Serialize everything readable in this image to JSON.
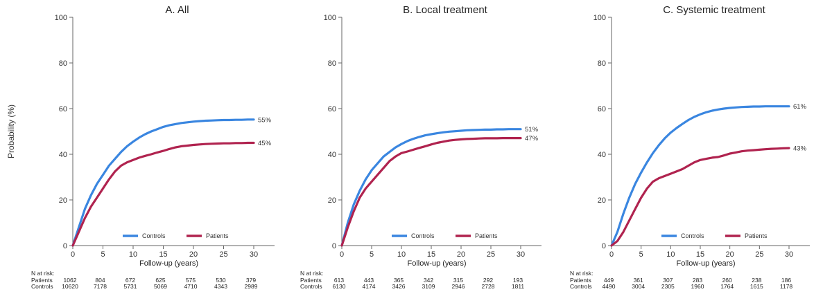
{
  "y_axis_label": "Probability (%)",
  "x_axis_label": "Follow-up (years)",
  "risk_header": "N at risk:",
  "colors": {
    "Controls": "#3a86e0",
    "Patients": "#b0234f"
  },
  "chart_data": [
    {
      "type": "line",
      "title": "A. All",
      "xlabel": "Follow-up (years)",
      "ylabel": "Probability (%)",
      "xlim": [
        0,
        30
      ],
      "ylim": [
        0,
        100
      ],
      "xticks": [
        0,
        5,
        10,
        15,
        20,
        25,
        30
      ],
      "yticks": [
        0,
        20,
        40,
        60,
        80,
        100
      ],
      "legend": [
        "Controls",
        "Patients"
      ],
      "series": [
        {
          "name": "Controls",
          "end_label": "55%",
          "x": [
            0,
            1,
            2,
            3,
            4,
            5,
            6,
            7,
            8,
            9,
            10,
            11,
            12,
            13,
            14,
            15,
            16,
            17,
            18,
            19,
            20,
            21,
            22,
            23,
            24,
            25,
            26,
            27,
            28,
            29,
            30
          ],
          "y": [
            0,
            8,
            16,
            22,
            27,
            31,
            35,
            38,
            41,
            43.5,
            45.5,
            47.3,
            48.8,
            50,
            51,
            52,
            52.7,
            53.2,
            53.7,
            54,
            54.3,
            54.5,
            54.7,
            54.8,
            54.9,
            55,
            55,
            55.1,
            55.1,
            55.2,
            55.2
          ]
        },
        {
          "name": "Patients",
          "end_label": "45%",
          "x": [
            0,
            1,
            2,
            3,
            4,
            5,
            6,
            7,
            8,
            9,
            10,
            11,
            12,
            13,
            14,
            15,
            16,
            17,
            18,
            19,
            20,
            21,
            22,
            23,
            24,
            25,
            26,
            27,
            28,
            29,
            30
          ],
          "y": [
            0,
            6,
            12,
            17,
            21,
            25,
            29,
            32.5,
            35,
            36.5,
            37.5,
            38.5,
            39.3,
            40,
            40.8,
            41.5,
            42.3,
            43,
            43.5,
            43.8,
            44.1,
            44.3,
            44.5,
            44.6,
            44.7,
            44.8,
            44.8,
            44.9,
            44.9,
            45,
            45
          ]
        }
      ],
      "at_risk": {
        "Patients": [
          1062,
          804,
          672,
          625,
          575,
          530,
          379
        ],
        "Controls": [
          10620,
          7178,
          5731,
          5069,
          4710,
          4343,
          2989
        ]
      }
    },
    {
      "type": "line",
      "title": "B. Local treatment",
      "xlabel": "Follow-up (years)",
      "ylabel": "Probability (%)",
      "xlim": [
        0,
        30
      ],
      "ylim": [
        0,
        100
      ],
      "xticks": [
        0,
        5,
        10,
        15,
        20,
        25,
        30
      ],
      "yticks": [
        0,
        20,
        40,
        60,
        80,
        100
      ],
      "legend": [
        "Controls",
        "Patients"
      ],
      "series": [
        {
          "name": "Controls",
          "end_label": "51%",
          "x": [
            0,
            1,
            2,
            3,
            4,
            5,
            6,
            7,
            8,
            9,
            10,
            11,
            12,
            13,
            14,
            15,
            16,
            17,
            18,
            19,
            20,
            21,
            22,
            23,
            24,
            25,
            26,
            27,
            28,
            29,
            30
          ],
          "y": [
            0,
            10,
            18,
            24,
            29,
            33,
            36,
            39,
            41,
            43,
            44.5,
            45.8,
            46.8,
            47.6,
            48.3,
            48.8,
            49.2,
            49.6,
            49.9,
            50.1,
            50.3,
            50.5,
            50.6,
            50.7,
            50.8,
            50.8,
            50.9,
            50.9,
            51,
            51,
            51
          ]
        },
        {
          "name": "Patients",
          "end_label": "47%",
          "x": [
            0,
            1,
            2,
            3,
            4,
            5,
            6,
            7,
            8,
            9,
            10,
            11,
            12,
            13,
            14,
            15,
            16,
            17,
            18,
            19,
            20,
            21,
            22,
            23,
            24,
            25,
            26,
            27,
            28,
            29,
            30
          ],
          "y": [
            0,
            8,
            15,
            21,
            25,
            28,
            31,
            34,
            37,
            39,
            40.5,
            41.2,
            42,
            42.8,
            43.5,
            44.3,
            45,
            45.5,
            46,
            46.3,
            46.5,
            46.7,
            46.8,
            46.9,
            47,
            47,
            47,
            47.1,
            47.1,
            47.1,
            47.1
          ]
        }
      ],
      "at_risk": {
        "Patients": [
          613,
          443,
          365,
          342,
          315,
          292,
          193
        ],
        "Controls": [
          6130,
          4174,
          3426,
          3109,
          2946,
          2728,
          1811
        ]
      }
    },
    {
      "type": "line",
      "title": "C. Systemic treatment",
      "xlabel": "Follow-up (years)",
      "ylabel": "Probability (%)",
      "xlim": [
        0,
        30
      ],
      "ylim": [
        0,
        100
      ],
      "xticks": [
        0,
        5,
        10,
        15,
        20,
        25,
        30
      ],
      "yticks": [
        0,
        20,
        40,
        60,
        80,
        100
      ],
      "legend": [
        "Controls",
        "Patients"
      ],
      "series": [
        {
          "name": "Controls",
          "end_label": "61%",
          "x": [
            0,
            1,
            2,
            3,
            4,
            5,
            6,
            7,
            8,
            9,
            10,
            11,
            12,
            13,
            14,
            15,
            16,
            17,
            18,
            19,
            20,
            21,
            22,
            23,
            24,
            25,
            26,
            27,
            28,
            29,
            30
          ],
          "y": [
            0,
            6,
            14,
            21,
            27,
            32,
            36.5,
            40.5,
            44,
            47,
            49.5,
            51.5,
            53.3,
            55,
            56.4,
            57.5,
            58.4,
            59.1,
            59.6,
            60,
            60.3,
            60.5,
            60.7,
            60.8,
            60.9,
            60.9,
            61,
            61,
            61,
            61,
            61
          ]
        },
        {
          "name": "Patients",
          "end_label": "43%",
          "x": [
            0,
            1,
            2,
            3,
            4,
            5,
            6,
            7,
            8,
            9,
            10,
            11,
            12,
            13,
            14,
            15,
            16,
            17,
            18,
            19,
            20,
            21,
            22,
            23,
            24,
            25,
            26,
            27,
            28,
            29,
            30
          ],
          "y": [
            0,
            2,
            6,
            11,
            16,
            21,
            25,
            28,
            29.5,
            30.5,
            31.5,
            32.5,
            33.5,
            35,
            36.5,
            37.5,
            38,
            38.5,
            38.8,
            39.5,
            40.3,
            40.8,
            41.3,
            41.6,
            41.8,
            42,
            42.2,
            42.4,
            42.5,
            42.6,
            42.7
          ]
        }
      ],
      "at_risk": {
        "Patients": [
          449,
          361,
          307,
          283,
          260,
          238,
          186
        ],
        "Controls": [
          4490,
          3004,
          2305,
          1960,
          1764,
          1615,
          1178
        ]
      }
    }
  ]
}
